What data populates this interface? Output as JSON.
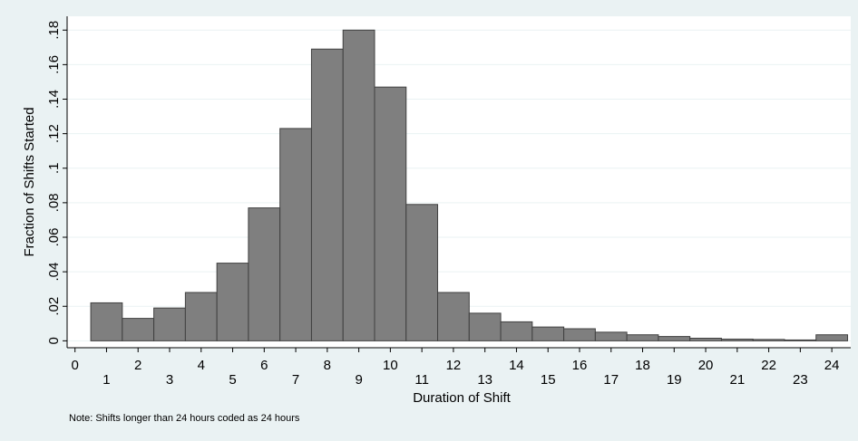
{
  "chart_data": {
    "type": "histogram",
    "x_label": "Duration of Shift",
    "y_label": "Fraction of Shifts Started",
    "note": "Note: Shifts longer than 24 hours coded as 24 hours",
    "bins": [
      0.5,
      1.5,
      2.5,
      3.5,
      4.5,
      5.5,
      6.5,
      7.5,
      8.5,
      9.5,
      10.5,
      11.5,
      12.5,
      13.5,
      14.5,
      15.5,
      16.5,
      17.5,
      18.5,
      19.5,
      20.5,
      21.5,
      22.5,
      23.5,
      24.5
    ],
    "values": [
      0.022,
      0.013,
      0.019,
      0.028,
      0.045,
      0.077,
      0.123,
      0.169,
      0.18,
      0.147,
      0.079,
      0.028,
      0.016,
      0.011,
      0.008,
      0.007,
      0.005,
      0.0035,
      0.0025,
      0.0015,
      0.001,
      0.0008,
      0.0005,
      0.0035
    ],
    "color": "#7f7f7f",
    "xlim": [
      -0.25,
      24.6
    ],
    "ylim": [
      -0.004,
      0.188
    ],
    "xticks": [
      0,
      1,
      2,
      3,
      4,
      5,
      6,
      7,
      8,
      9,
      10,
      11,
      12,
      13,
      14,
      15,
      16,
      17,
      18,
      19,
      20,
      21,
      22,
      23,
      24
    ],
    "yticks": [
      0,
      {
        "value": 0.02,
        "label": ".02"
      },
      {
        "value": 0.04,
        "label": ".04"
      },
      {
        "value": 0.06,
        "label": ".06"
      },
      {
        "value": 0.08,
        "label": ".08"
      },
      {
        "value": 0.1,
        "label": ".1"
      },
      {
        "value": 0.12,
        "label": ".12"
      },
      {
        "value": 0.14,
        "label": ".14"
      },
      {
        "value": 0.16,
        "label": ".16"
      },
      {
        "value": 0.18,
        "label": ".18"
      }
    ],
    "grid": true
  }
}
